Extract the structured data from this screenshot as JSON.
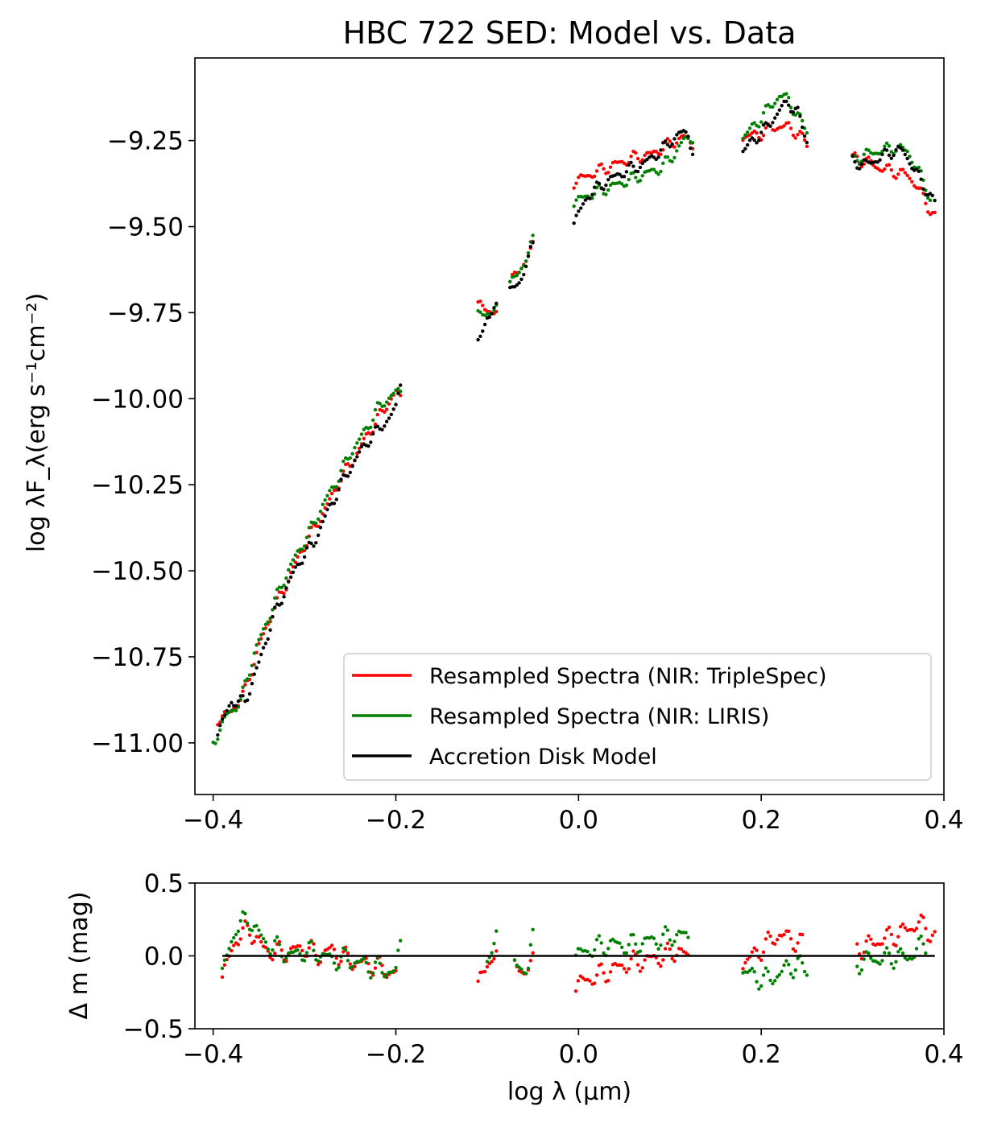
{
  "chart_data": [
    {
      "type": "scatter",
      "title": "HBC 722 SED: Model vs. Data",
      "xlabel": "",
      "ylabel": "log λF_λ(erg  s⁻¹cm⁻²)",
      "xlim": [
        -0.42,
        0.4
      ],
      "ylim": [
        -11.15,
        -9.01
      ],
      "x_ticks": [
        "−0.4",
        "−0.2",
        "0.0",
        "0.2",
        "0.4"
      ],
      "y_ticks": [
        "−9.25",
        "−9.50",
        "−9.75",
        "−10.00",
        "−10.25",
        "−10.50",
        "−10.75",
        "−11.00"
      ],
      "legend_position": "lower-right",
      "series": [
        {
          "name": "Resampled Spectra (NIR: TripleSpec)",
          "color": "#ff0000",
          "segments": [
            {
              "x": [
                -0.395,
                -0.38,
                -0.365,
                -0.35,
                -0.335,
                -0.32,
                -0.305,
                -0.29,
                -0.275,
                -0.26,
                -0.245,
                -0.23,
                -0.215,
                -0.2,
                -0.195
              ],
              "y": [
                -10.93,
                -10.91,
                -10.85,
                -10.72,
                -10.62,
                -10.54,
                -10.45,
                -10.38,
                -10.31,
                -10.23,
                -10.17,
                -10.1,
                -10.04,
                -9.98,
                -10.0
              ]
            },
            {
              "x": [
                -0.11,
                -0.1,
                -0.09
              ],
              "y": [
                -9.73,
                -9.74,
                -9.75
              ]
            },
            {
              "x": [
                -0.075,
                -0.065,
                -0.055,
                -0.05
              ],
              "y": [
                -9.66,
                -9.63,
                -9.58,
                -9.56
              ]
            },
            {
              "x": [
                -0.005,
                0.02,
                0.04,
                0.06,
                0.08,
                0.1,
                0.115,
                0.125
              ],
              "y": [
                -9.37,
                -9.34,
                -9.32,
                -9.3,
                -9.29,
                -9.26,
                -9.24,
                -9.26
              ]
            },
            {
              "x": [
                0.18,
                0.2,
                0.215,
                0.23,
                0.24,
                0.25
              ],
              "y": [
                -9.24,
                -9.23,
                -9.21,
                -9.21,
                -9.23,
                -9.26
              ]
            },
            {
              "x": [
                0.3,
                0.315,
                0.33,
                0.345,
                0.36,
                0.37,
                0.38,
                0.39
              ],
              "y": [
                -9.3,
                -9.31,
                -9.33,
                -9.34,
                -9.35,
                -9.38,
                -9.43,
                -9.47
              ]
            }
          ]
        },
        {
          "name": "Resampled Spectra (NIR: LIRIS)",
          "color": "#008000",
          "segments": [
            {
              "x": [
                -0.4,
                -0.385,
                -0.37,
                -0.355,
                -0.34,
                -0.325,
                -0.31,
                -0.295,
                -0.28,
                -0.265,
                -0.25,
                -0.235,
                -0.22,
                -0.205,
                -0.195
              ],
              "y": [
                -11.0,
                -10.92,
                -10.88,
                -10.74,
                -10.64,
                -10.54,
                -10.46,
                -10.39,
                -10.31,
                -10.24,
                -10.16,
                -10.1,
                -10.03,
                -9.99,
                -9.98
              ]
            },
            {
              "x": [
                -0.11,
                -0.1,
                -0.09
              ],
              "y": [
                -9.76,
                -9.75,
                -9.74
              ]
            },
            {
              "x": [
                -0.075,
                -0.065,
                -0.055,
                -0.05
              ],
              "y": [
                -9.67,
                -9.63,
                -9.58,
                -9.54
              ]
            },
            {
              "x": [
                -0.005,
                0.01,
                0.03,
                0.05,
                0.07,
                0.09,
                0.105,
                0.115,
                0.125
              ],
              "y": [
                -9.43,
                -9.41,
                -9.39,
                -9.37,
                -9.35,
                -9.33,
                -9.29,
                -9.25,
                -9.24
              ]
            },
            {
              "x": [
                0.18,
                0.195,
                0.21,
                0.22,
                0.23,
                0.24,
                0.25
              ],
              "y": [
                -9.24,
                -9.2,
                -9.15,
                -9.12,
                -9.13,
                -9.18,
                -9.22
              ]
            },
            {
              "x": [
                0.3,
                0.315,
                0.33,
                0.345,
                0.36,
                0.37,
                0.38,
                0.385
              ],
              "y": [
                -9.31,
                -9.29,
                -9.28,
                -9.27,
                -9.28,
                -9.33,
                -9.38,
                -9.42
              ]
            }
          ]
        },
        {
          "name": "Accretion Disk Model",
          "color": "#000000",
          "segments": [
            {
              "x": [
                -0.395,
                -0.38,
                -0.365,
                -0.35,
                -0.335,
                -0.32,
                -0.305,
                -0.29,
                -0.275,
                -0.26,
                -0.245,
                -0.23,
                -0.215,
                -0.2,
                -0.195
              ],
              "y": [
                -10.97,
                -10.88,
                -10.88,
                -10.77,
                -10.64,
                -10.55,
                -10.47,
                -10.42,
                -10.33,
                -10.25,
                -10.18,
                -10.12,
                -10.08,
                -10.03,
                -9.95
              ]
            },
            {
              "x": [
                -0.11,
                -0.1,
                -0.09
              ],
              "y": [
                -9.84,
                -9.76,
                -9.74
              ]
            },
            {
              "x": [
                -0.075,
                -0.065,
                -0.055,
                -0.05
              ],
              "y": [
                -9.69,
                -9.66,
                -9.6,
                -9.55
              ]
            },
            {
              "x": [
                -0.005,
                0.01,
                0.03,
                0.05,
                0.07,
                0.09,
                0.11,
                0.12,
                0.125
              ],
              "y": [
                -9.49,
                -9.41,
                -9.37,
                -9.34,
                -9.32,
                -9.28,
                -9.23,
                -9.23,
                -9.28
              ]
            },
            {
              "x": [
                0.18,
                0.195,
                0.21,
                0.22,
                0.23,
                0.24,
                0.25
              ],
              "y": [
                -9.28,
                -9.24,
                -9.2,
                -9.16,
                -9.14,
                -9.17,
                -9.25
              ]
            },
            {
              "x": [
                0.3,
                0.315,
                0.33,
                0.345,
                0.355,
                0.365,
                0.375,
                0.39
              ],
              "y": [
                -9.31,
                -9.32,
                -9.3,
                -9.28,
                -9.28,
                -9.32,
                -9.37,
                -9.43
              ]
            }
          ]
        }
      ]
    },
    {
      "type": "scatter",
      "title": "",
      "xlabel": "log λ (μm)",
      "ylabel": "Δ m (mag)",
      "xlim": [
        -0.42,
        0.4
      ],
      "ylim": [
        -0.5,
        0.5
      ],
      "x_ticks": [
        "−0.4",
        "−0.2",
        "0.0",
        "0.2",
        "0.4"
      ],
      "y_ticks": [
        "0.5",
        "0.0",
        "−0.5"
      ],
      "zero_line": {
        "y": 0,
        "x_range": [
          -0.39,
          0.39
        ],
        "color": "#000000"
      },
      "series": [
        {
          "name": "Resampled Spectra (NIR: TripleSpec)",
          "color": "#ff0000",
          "segments": [
            {
              "x": [
                -0.39,
                -0.375,
                -0.36,
                -0.345,
                -0.33,
                -0.315,
                -0.3,
                -0.285,
                -0.27,
                -0.255,
                -0.24,
                -0.225,
                -0.21,
                -0.2
              ],
              "y": [
                -0.15,
                0.12,
                0.18,
                0.05,
                0.02,
                0.03,
                0.06,
                0.0,
                0.04,
                -0.02,
                -0.05,
                -0.06,
                -0.1,
                -0.12
              ]
            },
            {
              "x": [
                -0.11,
                -0.1,
                -0.09
              ],
              "y": [
                -0.22,
                -0.05,
                0.02
              ]
            },
            {
              "x": [
                -0.07,
                -0.06,
                -0.05
              ],
              "y": [
                -0.08,
                -0.1,
                -0.05
              ]
            },
            {
              "x": [
                -0.003,
                0.015,
                0.035,
                0.055,
                0.075,
                0.095,
                0.11,
                0.12
              ],
              "y": [
                -0.2,
                -0.15,
                -0.1,
                -0.05,
                -0.03,
                0.0,
                0.04,
                -0.02
              ]
            },
            {
              "x": [
                0.18,
                0.195,
                0.21,
                0.22,
                0.23,
                0.24,
                0.245
              ],
              "y": [
                -0.05,
                0.02,
                0.1,
                0.15,
                0.12,
                0.1,
                0.08
              ]
            },
            {
              "x": [
                0.305,
                0.32,
                0.335,
                0.35,
                0.36,
                0.37,
                0.38,
                0.39
              ],
              "y": [
                0.05,
                0.08,
                0.12,
                0.15,
                0.18,
                0.22,
                0.2,
                0.12
              ]
            }
          ]
        },
        {
          "name": "Resampled Spectra (NIR: LIRIS)",
          "color": "#008000",
          "segments": [
            {
              "x": [
                -0.39,
                -0.375,
                -0.36,
                -0.345,
                -0.33,
                -0.315,
                -0.3,
                -0.285,
                -0.27,
                -0.255,
                -0.24,
                -0.225,
                -0.21,
                -0.2,
                -0.195
              ],
              "y": [
                -0.12,
                0.2,
                0.25,
                0.1,
                0.05,
                0.0,
                0.03,
                0.02,
                -0.03,
                -0.02,
                -0.05,
                -0.08,
                -0.1,
                -0.12,
                0.1
              ]
            },
            {
              "x": [
                -0.1,
                -0.095,
                -0.09
              ],
              "y": [
                -0.02,
                0.05,
                0.12
              ]
            },
            {
              "x": [
                -0.07,
                -0.06,
                -0.055,
                -0.05
              ],
              "y": [
                -0.05,
                -0.08,
                -0.1,
                0.12
              ]
            },
            {
              "x": [
                -0.003,
                0.015,
                0.035,
                0.055,
                0.075,
                0.095,
                0.11,
                0.12
              ],
              "y": [
                0.0,
                0.05,
                0.08,
                0.07,
                0.1,
                0.12,
                0.15,
                0.12
              ]
            },
            {
              "x": [
                0.18,
                0.195,
                0.21,
                0.22,
                0.23,
                0.24,
                0.25
              ],
              "y": [
                -0.1,
                -0.15,
                -0.16,
                -0.12,
                -0.08,
                -0.06,
                -0.1
              ]
            },
            {
              "x": [
                0.305,
                0.32,
                0.335,
                0.35,
                0.36,
                0.37,
                0.38
              ],
              "y": [
                -0.05,
                -0.02,
                -0.02,
                0.0,
                -0.02,
                0.05,
                0.08
              ]
            }
          ]
        }
      ]
    }
  ]
}
